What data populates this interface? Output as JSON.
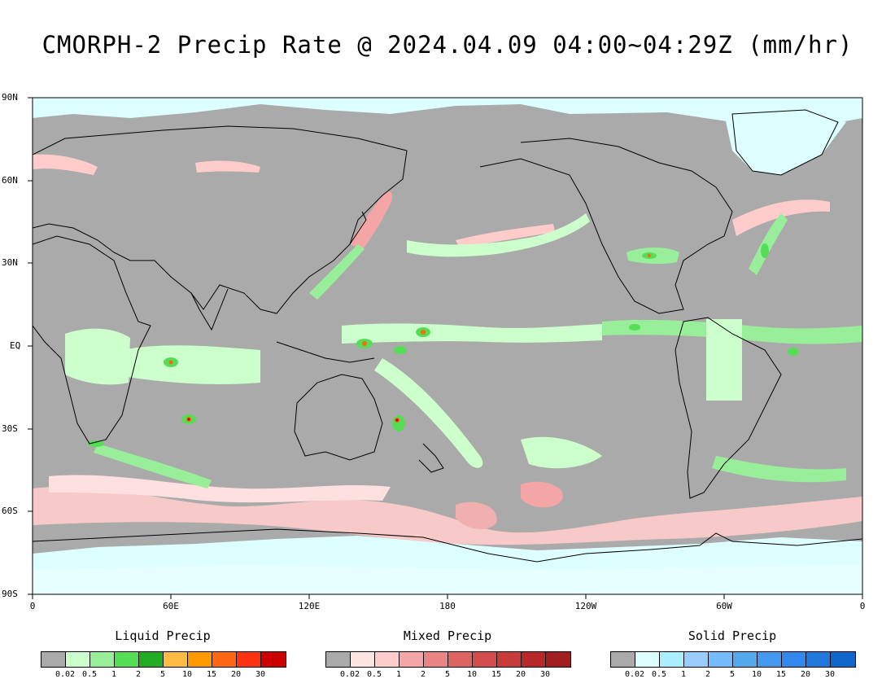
{
  "title": "CMORPH-2 Precip Rate @ 2024.04.09 04:00~04:29Z (mm/hr)",
  "y_axis_labels": [
    "90N",
    "60N",
    "30N",
    "EQ",
    "30S",
    "60S",
    "90S"
  ],
  "x_axis_labels": [
    "0",
    "60E",
    "120E",
    "180",
    "120W",
    "60W",
    "0"
  ],
  "legends": [
    {
      "name": "Liquid Precip",
      "colors": [
        "#aaaaaa",
        "#ccffcc",
        "#99ee99",
        "#55dd55",
        "#22aa22",
        "#ffbb44",
        "#ff9900",
        "#ff6611",
        "#ff3311",
        "#cc0000"
      ],
      "ticks": [
        "0.02",
        "0.5",
        "1",
        "2",
        "5",
        "10",
        "15",
        "20",
        "30"
      ]
    },
    {
      "name": "Mixed Precip",
      "colors": [
        "#aaaaaa",
        "#ffe4e4",
        "#ffcccc",
        "#f4a5a5",
        "#ea8585",
        "#de6464",
        "#d44c4c",
        "#c93a3a",
        "#b82828",
        "#a31e1e"
      ],
      "ticks": [
        "0.02",
        "0.5",
        "1",
        "2",
        "5",
        "10",
        "15",
        "20",
        "30"
      ]
    },
    {
      "name": "Solid Precip",
      "colors": [
        "#aaaaaa",
        "#ddffff",
        "#aaeeff",
        "#99ccff",
        "#77bbff",
        "#55aaee",
        "#4499ee",
        "#3388ee",
        "#2277dd",
        "#1166cc"
      ],
      "ticks": [
        "0.02",
        "0.5",
        "1",
        "2",
        "5",
        "10",
        "15",
        "20",
        "30"
      ]
    }
  ],
  "colors": {
    "no_data": "#aaaaaa",
    "coast": "#000000"
  }
}
